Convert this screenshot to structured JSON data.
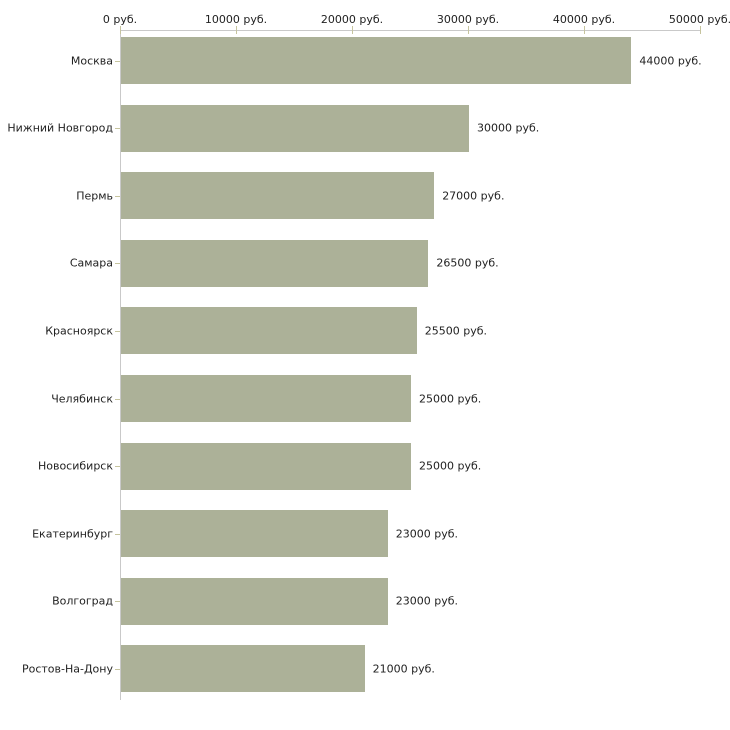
{
  "chart_data": {
    "type": "bar",
    "orientation": "horizontal",
    "title": "",
    "xlabel": "",
    "ylabel": "",
    "unit": "руб.",
    "xlim": [
      0,
      50000
    ],
    "grid": false,
    "legend": false,
    "categories": [
      "Москва",
      "Нижний Новгород",
      "Пермь",
      "Самара",
      "Красноярск",
      "Челябинск",
      "Новосибирск",
      "Екатеринбург",
      "Волгоград",
      "Ростов-На-Дону"
    ],
    "values": [
      44000,
      30000,
      27000,
      26500,
      25500,
      25000,
      25000,
      23000,
      23000,
      21000
    ],
    "value_labels": [
      "44000 руб.",
      "30000 руб.",
      "27000 руб.",
      "26500 руб.",
      "25500 руб.",
      "25000 руб.",
      "25000 руб.",
      "23000 руб.",
      "23000 руб.",
      "21000 руб."
    ],
    "x_ticks": [
      {
        "value": 0,
        "label": "0 руб."
      },
      {
        "value": 10000,
        "label": "10000 руб."
      },
      {
        "value": 20000,
        "label": "20000 руб."
      },
      {
        "value": 30000,
        "label": "30000 руб."
      },
      {
        "value": 40000,
        "label": "40000 руб."
      },
      {
        "value": 50000,
        "label": "50000 руб."
      }
    ],
    "colors": {
      "bar": "#acb198",
      "axis": "#c9c9c9",
      "tick": "#c6c49e",
      "text": "#222222",
      "background": "#ffffff"
    }
  }
}
